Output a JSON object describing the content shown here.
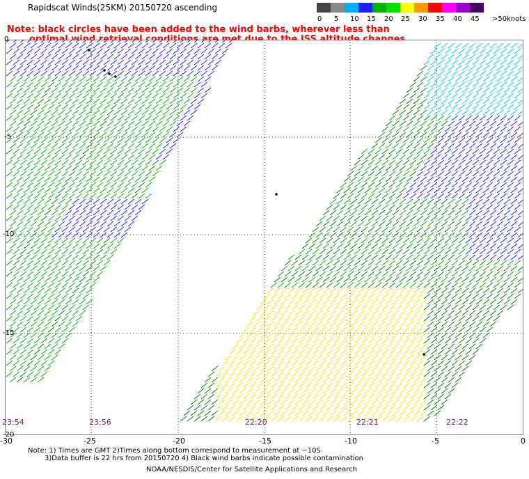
{
  "header": {
    "title": "Rapidscat Winds(25KM) 20150720 ascending",
    "note_line1": "Note: black circles have been added to the wind barbs, wherever less than",
    "note_line2": "optimal wind retrieval conditions are met due to the ISS altitude changes."
  },
  "legend": {
    "unit": "knots",
    "labels": [
      "0",
      "5",
      "10",
      "15",
      "20",
      "25",
      "30",
      "35",
      "40",
      "45",
      ">50"
    ],
    "colors": [
      "#444444",
      "#888888",
      "#00aaff",
      "#1e1eff",
      "#00b400",
      "#00e000",
      "#ffff00",
      "#ff9900",
      "#ff0000",
      "#ff00ff",
      "#9900cc",
      "#440066"
    ]
  },
  "map": {
    "y_axis_labels": [
      "0",
      "-5",
      "-10",
      "-15",
      "-20"
    ],
    "x_axis_labels": [
      "-30",
      "-25",
      "-20",
      "-15",
      "-10",
      "-5",
      "0"
    ],
    "time_labels": [
      "23:54",
      "23:56",
      "22:20",
      "22:21",
      "22:22"
    ],
    "wind_colors": {
      "low": "#1e1eff",
      "cyan": "#00c8ff",
      "mid": "#00b400",
      "dark": "#008000",
      "high": "#e8e800"
    }
  },
  "footer": {
    "line1": "Note: 1) Times are GMT 2)Times along bottom correspond to measurement at ~10S",
    "line2": "3)Data buffer is 22 hrs from 20150720 4) Black wind barbs indicate possible contamination",
    "credit": "NOAA/NESDIS/Center for Satellite Applications and Research"
  }
}
